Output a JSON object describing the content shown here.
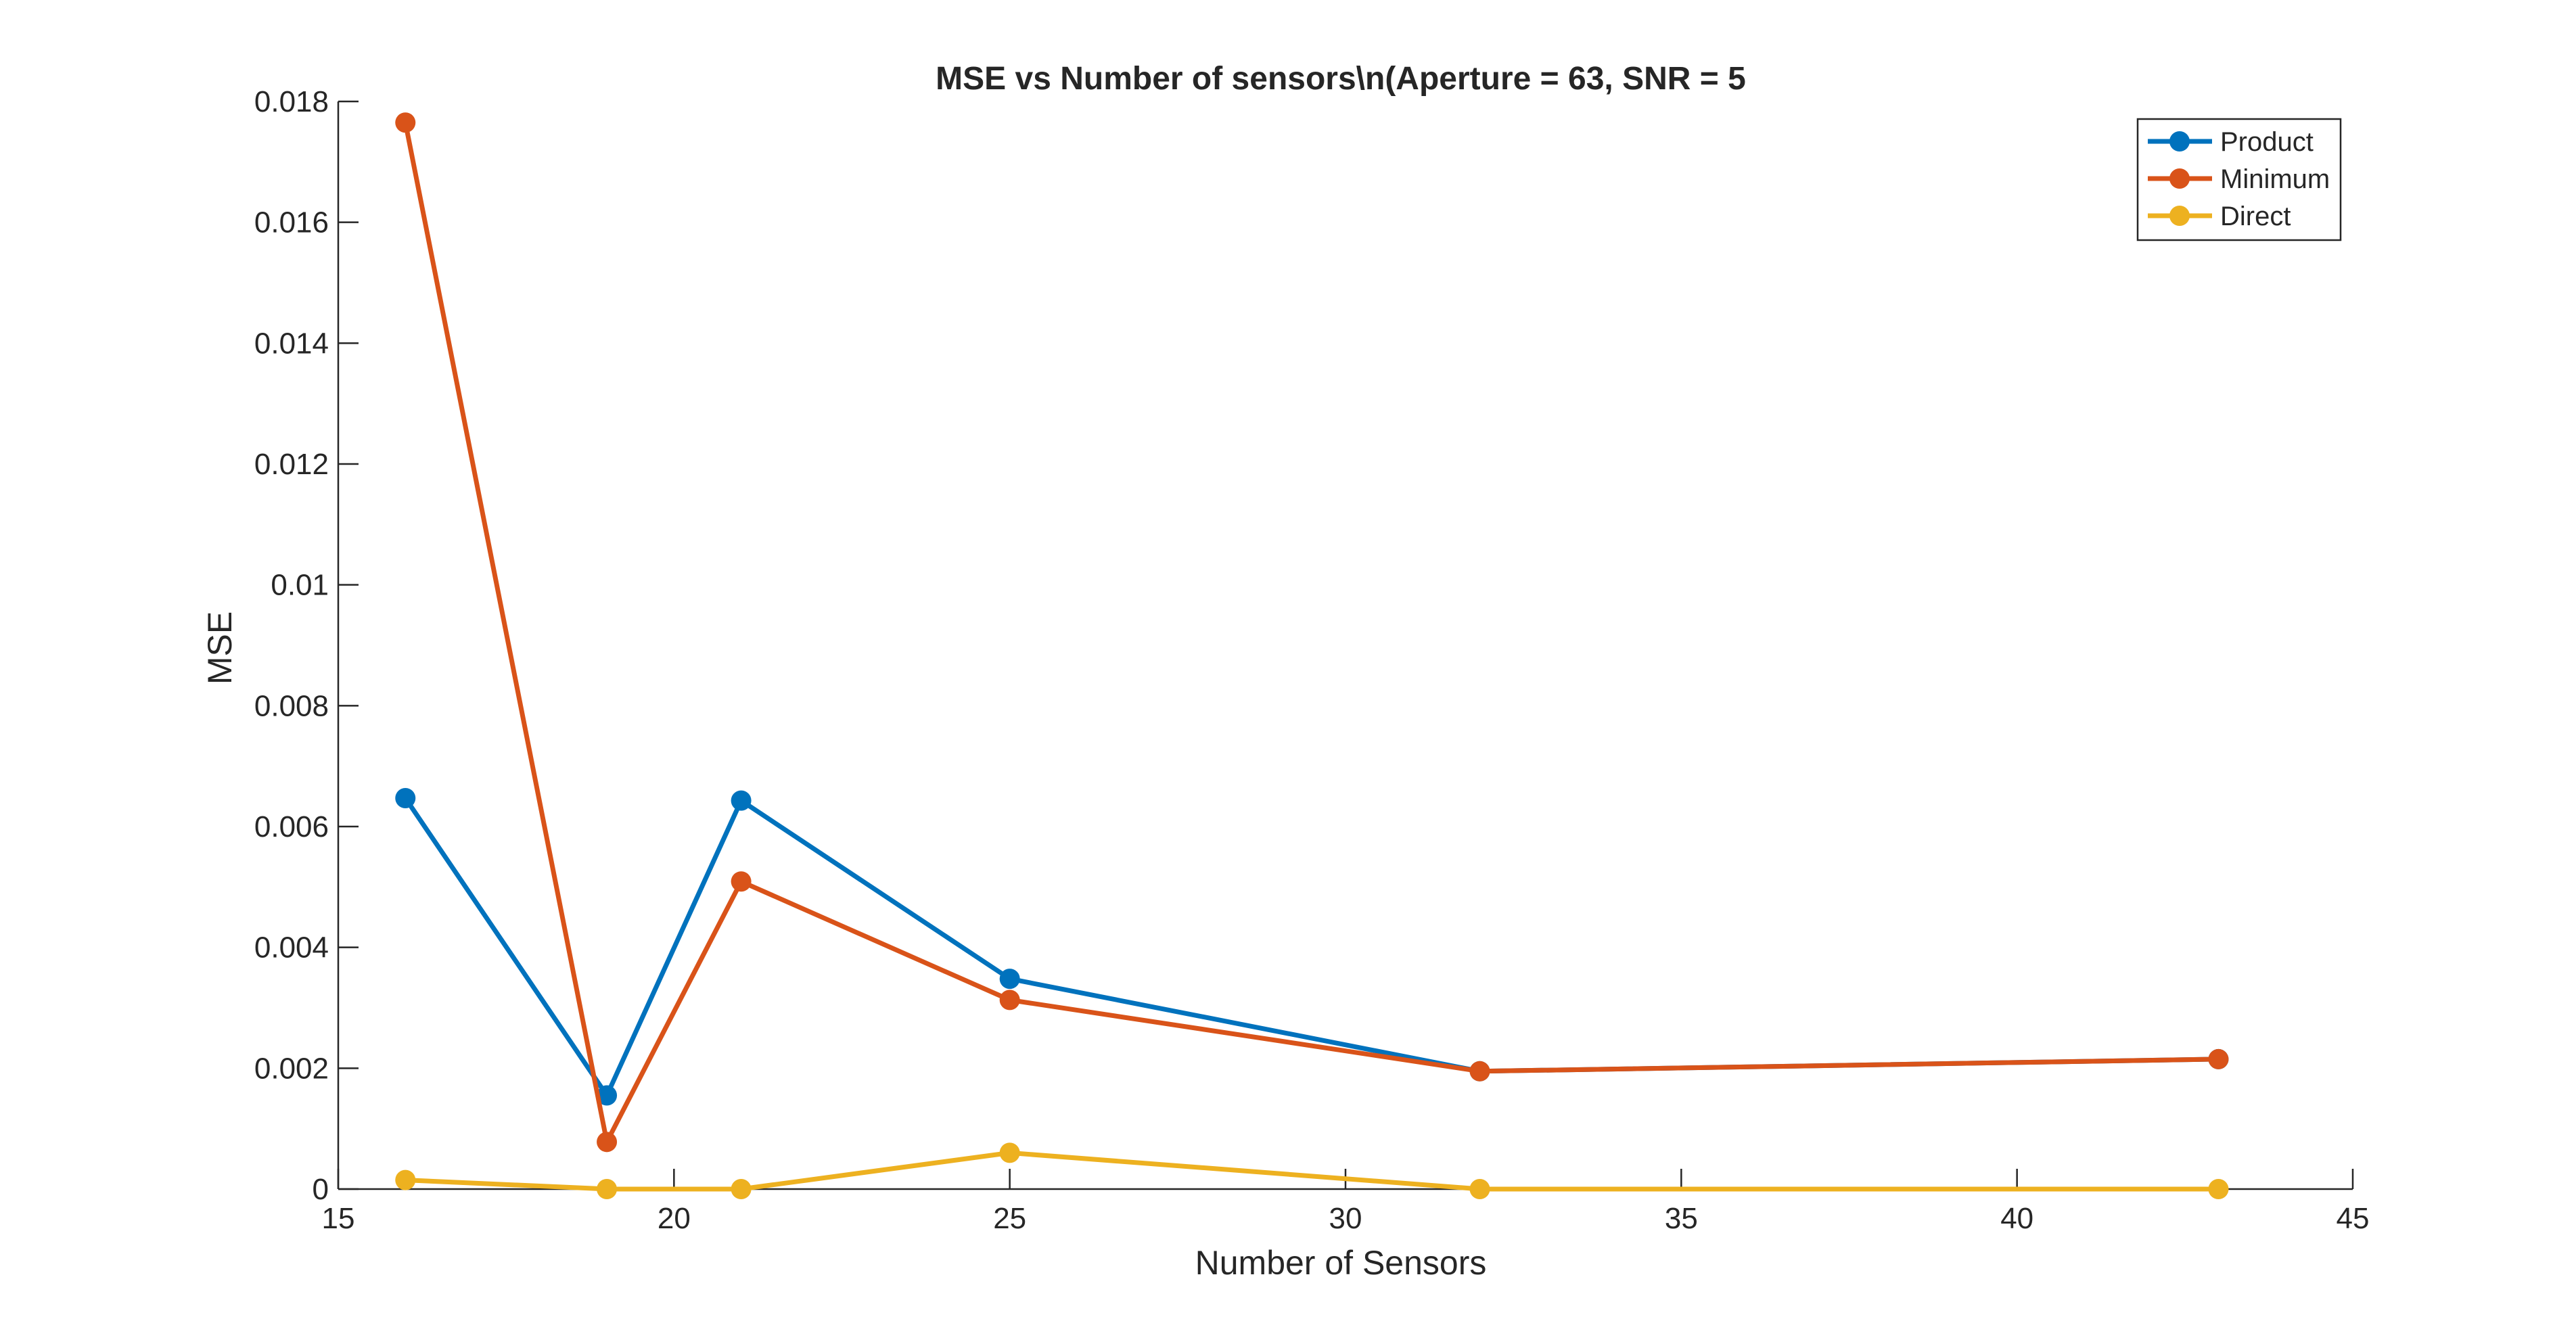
{
  "chart_data": {
    "type": "line",
    "title": "MSE vs Number of sensors\\n(Aperture = 63, SNR = 5",
    "xlabel": "Number of Sensors",
    "ylabel": "MSE",
    "xlim": [
      15,
      45
    ],
    "ylim": [
      0,
      0.018
    ],
    "xticks": [
      15,
      20,
      25,
      30,
      35,
      40,
      45
    ],
    "xtick_labels": [
      "15",
      "20",
      "25",
      "30",
      "35",
      "40",
      "45"
    ],
    "yticks": [
      0,
      0.002,
      0.004,
      0.006,
      0.008,
      0.01,
      0.012,
      0.014,
      0.016,
      0.018
    ],
    "ytick_labels": [
      "0",
      "0.002",
      "0.004",
      "0.006",
      "0.008",
      "0.01",
      "0.012",
      "0.014",
      "0.016",
      "0.018"
    ],
    "grid": false,
    "legend_position": "top-right",
    "x": [
      16,
      19,
      21,
      25,
      32,
      43
    ],
    "series": [
      {
        "name": "Product",
        "color": "#0072BD",
        "values": [
          0.00647,
          0.00155,
          0.00643,
          0.00348,
          0.00195,
          0.00215
        ]
      },
      {
        "name": "Minimum",
        "color": "#D95319",
        "values": [
          0.01765,
          0.00078,
          0.00509,
          0.00313,
          0.00195,
          0.00215
        ]
      },
      {
        "name": "Direct",
        "color": "#EDB120",
        "values": [
          0.00015,
          0.0,
          0.0,
          0.0006,
          0.0,
          0.0
        ]
      }
    ]
  }
}
